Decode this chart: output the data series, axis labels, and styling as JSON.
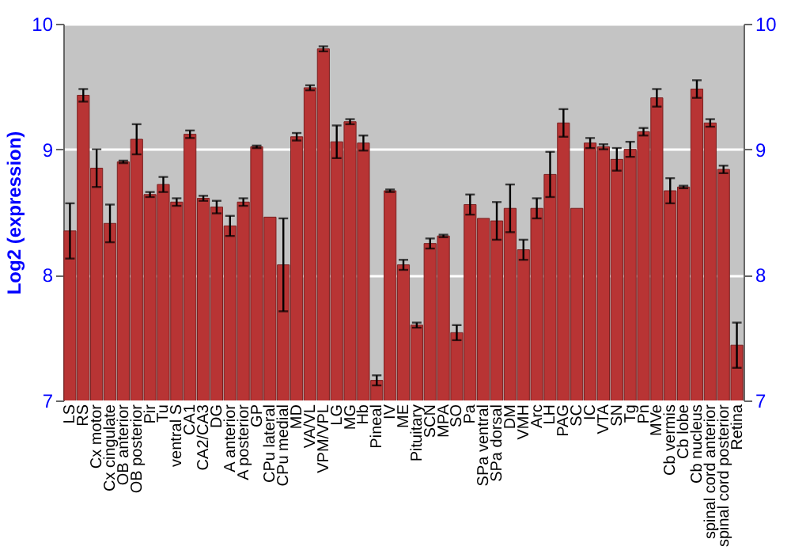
{
  "chart_data": {
    "type": "bar",
    "ylabel": "Log2 (expression)",
    "categories": [
      "LS",
      "RS",
      "Cx motor",
      "Cx cingulate",
      "OB anterior",
      "OB posterior",
      "Pir",
      "Tu",
      "ventral S",
      "CA1",
      "CA2/CA3",
      "DG",
      "A anterior",
      "A posterior",
      "GP",
      "CPu lateral",
      "CPu medial",
      "MD",
      "VA/VL",
      "VPM/VPL",
      "LG",
      "MG",
      "Hb",
      "Pineal",
      "IV",
      "ME",
      "Pituitary",
      "SCN",
      "MPA",
      "SO",
      "Pa",
      "SPa ventral",
      "SPa dorsal",
      "DM",
      "VMH",
      "Arc",
      "LH",
      "PAG",
      "SC",
      "IC",
      "VTA",
      "SN",
      "Tg",
      "Pn",
      "MVe",
      "Cb vermis",
      "Cb lobe",
      "Cb nucleus",
      "spinal cord anterior",
      "spinal cord posterior",
      "Retina"
    ],
    "series": [
      {
        "color": "#b83434",
        "values": [
          8.35,
          9.43,
          8.85,
          8.41,
          8.9,
          9.08,
          8.64,
          8.72,
          8.58,
          9.12,
          8.61,
          8.54,
          8.39,
          8.58,
          9.02,
          8.46,
          8.08,
          9.1,
          9.49,
          9.8,
          9.06,
          9.22,
          9.05,
          7.16,
          8.67,
          8.08,
          7.6,
          8.25,
          8.31,
          7.54,
          8.56,
          8.45,
          8.43,
          8.53,
          8.2,
          8.53,
          8.8,
          9.21,
          8.53,
          9.05,
          9.02,
          8.92,
          9.0,
          9.14,
          9.41,
          8.67,
          8.7,
          9.48,
          9.21,
          8.84,
          7.44
        ],
        "errors": [
          0.22,
          0.05,
          0.15,
          0.15,
          0.01,
          0.12,
          0.02,
          0.06,
          0.03,
          0.03,
          0.02,
          0.05,
          0.08,
          0.03,
          0.01,
          null,
          0.37,
          0.03,
          0.02,
          0.02,
          0.13,
          0.02,
          0.06,
          0.04,
          0.01,
          0.04,
          0.02,
          0.04,
          0.01,
          0.06,
          0.08,
          null,
          0.15,
          0.19,
          0.08,
          0.08,
          0.18,
          0.11,
          null,
          0.04,
          0.02,
          0.09,
          0.06,
          0.03,
          0.07,
          0.1,
          0.01,
          0.07,
          0.03,
          0.03,
          0.18
        ]
      }
    ],
    "ylim": [
      7,
      10
    ],
    "yticks": [
      7,
      8,
      9,
      10
    ],
    "y2lim": [
      7,
      10
    ],
    "y2ticks": [
      7,
      8,
      9,
      10
    ],
    "grid": "y"
  }
}
